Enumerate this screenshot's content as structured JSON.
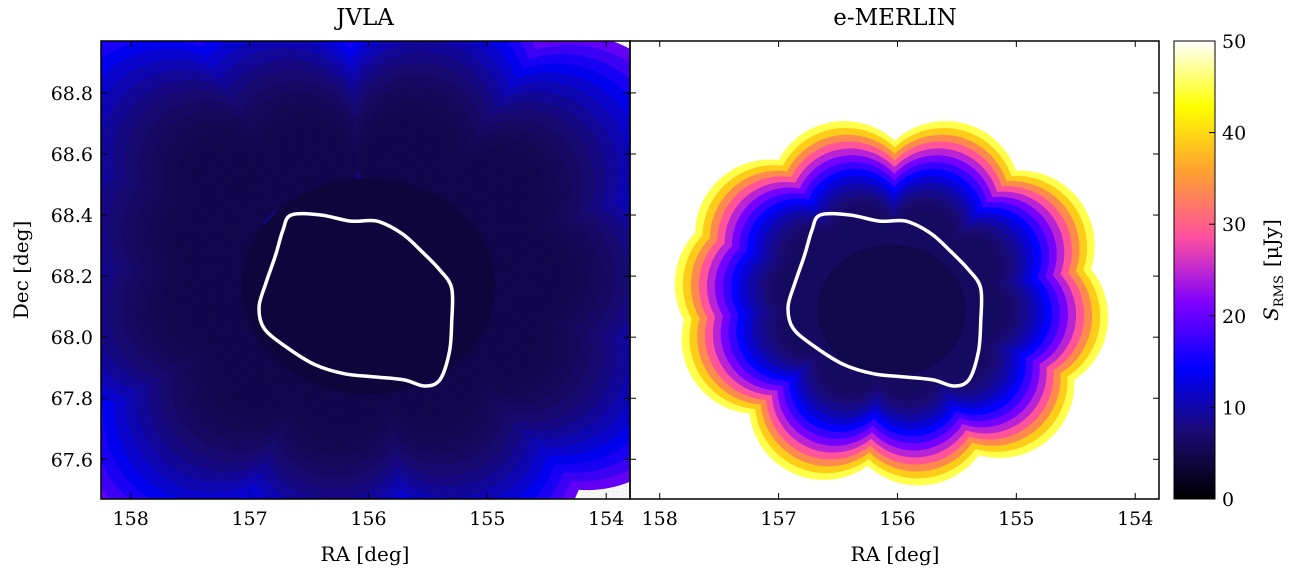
{
  "chart_data": [
    {
      "type": "heatmap",
      "title": "JVLA",
      "xlabel": "RA [deg]",
      "ylabel": "Dec [deg]",
      "xlim": [
        158.25,
        153.8
      ],
      "ylim": [
        67.47,
        68.97
      ],
      "xticks": [
        158,
        157,
        156,
        155,
        154
      ],
      "xtick_labels": [
        "158",
        "157",
        "156",
        "155",
        "154"
      ],
      "yticks": [
        67.6,
        67.8,
        68.0,
        68.2,
        68.4,
        68.6,
        68.8
      ],
      "ytick_labels": [
        "67.6",
        "67.8",
        "68.0",
        "68.2",
        "68.4",
        "68.6",
        "68.8"
      ],
      "coverage_center": [
        156.0,
        68.2
      ],
      "coverage_edge_rms_uJy": 20,
      "coverage_core_rms_uJy": 5
    },
    {
      "type": "heatmap",
      "title": "e-MERLIN",
      "xlabel": "RA [deg]",
      "ylabel": "",
      "xlim": [
        158.25,
        153.8
      ],
      "ylim": [
        67.47,
        68.97
      ],
      "xticks": [
        158,
        157,
        156,
        155,
        154
      ],
      "xtick_labels": [
        "158",
        "157",
        "156",
        "155",
        "154"
      ],
      "coverage_center": [
        156.05,
        68.12
      ],
      "coverage_edge_rms_uJy": 45,
      "coverage_core_rms_uJy": 6
    }
  ],
  "colorbar": {
    "label": "S_RMS [μJy]",
    "label_main": "S",
    "label_sub": "RMS",
    "label_unit": "[μJy]",
    "range": [
      0,
      50
    ],
    "ticks": [
      0,
      10,
      20,
      30,
      40,
      50
    ],
    "tick_labels": [
      "0",
      "10",
      "20",
      "30",
      "40",
      "50"
    ],
    "colormap": "gnuplot2",
    "stops": [
      "#000000",
      "#1a0a70",
      "#0000ff",
      "#8000ff",
      "#ff50a0",
      "#ffa030",
      "#ffff00",
      "#ffffff"
    ]
  },
  "contour": {
    "color": "#ffffff",
    "points": [
      [
        156.65,
        68.4
      ],
      [
        156.4,
        68.4
      ],
      [
        156.15,
        68.38
      ],
      [
        155.93,
        68.38
      ],
      [
        155.72,
        68.34
      ],
      [
        155.55,
        68.28
      ],
      [
        155.4,
        68.22
      ],
      [
        155.3,
        68.16
      ],
      [
        155.3,
        68.05
      ],
      [
        155.32,
        67.95
      ],
      [
        155.4,
        67.86
      ],
      [
        155.53,
        67.84
      ],
      [
        155.7,
        67.86
      ],
      [
        155.95,
        67.87
      ],
      [
        156.2,
        67.88
      ],
      [
        156.45,
        67.91
      ],
      [
        156.7,
        67.97
      ],
      [
        156.88,
        68.03
      ],
      [
        156.92,
        68.1
      ],
      [
        156.86,
        68.18
      ],
      [
        156.78,
        68.27
      ],
      [
        156.72,
        68.35
      ]
    ]
  }
}
